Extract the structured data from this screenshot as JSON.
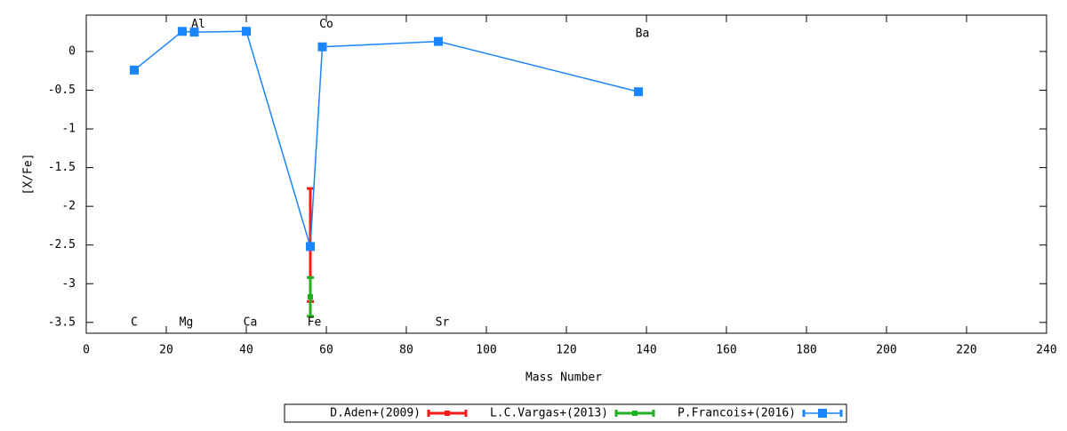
{
  "chart_data": {
    "type": "line",
    "x_label": "Mass Number",
    "y_label": "[X/Fe]",
    "xlim": [
      0,
      240
    ],
    "xticks": [
      0,
      20,
      40,
      60,
      80,
      100,
      120,
      140,
      160,
      180,
      200,
      220,
      240
    ],
    "ylim": [
      -3.64,
      0.47
    ],
    "yticks": [
      0,
      -0.5,
      -1,
      -1.5,
      -2,
      -2.5,
      -3,
      -3.5
    ],
    "legend": "bottom",
    "series": [
      {
        "name": "D.Aden+(2009)",
        "color": "#ff1a1a",
        "x": [
          56
        ],
        "values": [
          -2.5
        ],
        "errors": [
          0.73
        ]
      },
      {
        "name": "L.C.Vargas+(2013)",
        "color": "#22b022",
        "x": [
          56
        ],
        "values": [
          -3.17
        ],
        "errors": [
          0.25
        ]
      },
      {
        "name": "P.Francois+(2016)",
        "color": "#1a85ff",
        "x": [
          12,
          24,
          27,
          40,
          56,
          59,
          88,
          138
        ],
        "values": [
          -0.24,
          0.26,
          0.25,
          0.26,
          -2.52,
          0.06,
          0.13,
          -0.52
        ]
      }
    ],
    "annotations": [
      {
        "text": "C",
        "x": 12,
        "y": -3.5
      },
      {
        "text": "Mg",
        "x": 25,
        "y": -3.5
      },
      {
        "text": "Al",
        "x": 28,
        "y": 0.35
      },
      {
        "text": "Ca",
        "x": 41,
        "y": -3.5
      },
      {
        "text": "Fe",
        "x": 57,
        "y": -3.5
      },
      {
        "text": "Co",
        "x": 60,
        "y": 0.35
      },
      {
        "text": "Sr",
        "x": 89,
        "y": -3.5
      },
      {
        "text": "Ba",
        "x": 139,
        "y": 0.23
      }
    ]
  }
}
